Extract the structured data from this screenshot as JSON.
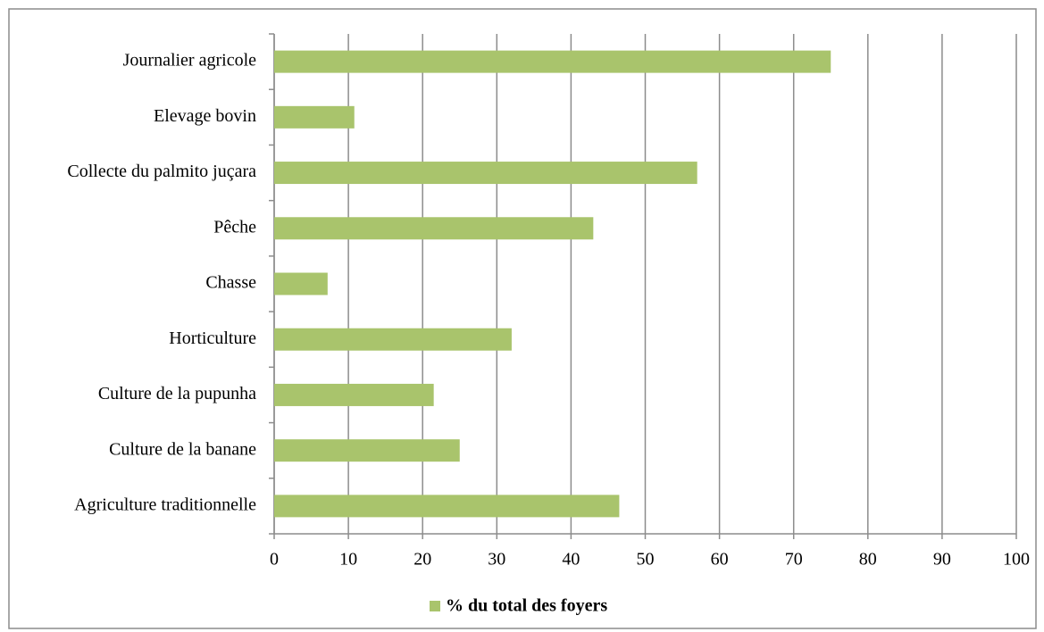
{
  "chart_data": {
    "type": "bar",
    "orientation": "horizontal",
    "categories": [
      "Journalier agricole",
      "Elevage bovin",
      "Collecte du palmito juçara",
      "Pêche",
      "Chasse",
      "Horticulture",
      "Culture de la pupunha",
      "Culture de la banane",
      "Agriculture traditionnelle"
    ],
    "series": [
      {
        "name": "% du total des foyers",
        "color": "#a9c46c",
        "values": [
          75,
          10.8,
          57,
          43,
          7.2,
          32,
          21.5,
          25,
          46.5
        ]
      }
    ],
    "xlim": [
      0,
      100
    ],
    "xticks": [
      0,
      10,
      20,
      30,
      40,
      50,
      60,
      70,
      80,
      90,
      100
    ],
    "grid": true,
    "legend": "bottom"
  }
}
